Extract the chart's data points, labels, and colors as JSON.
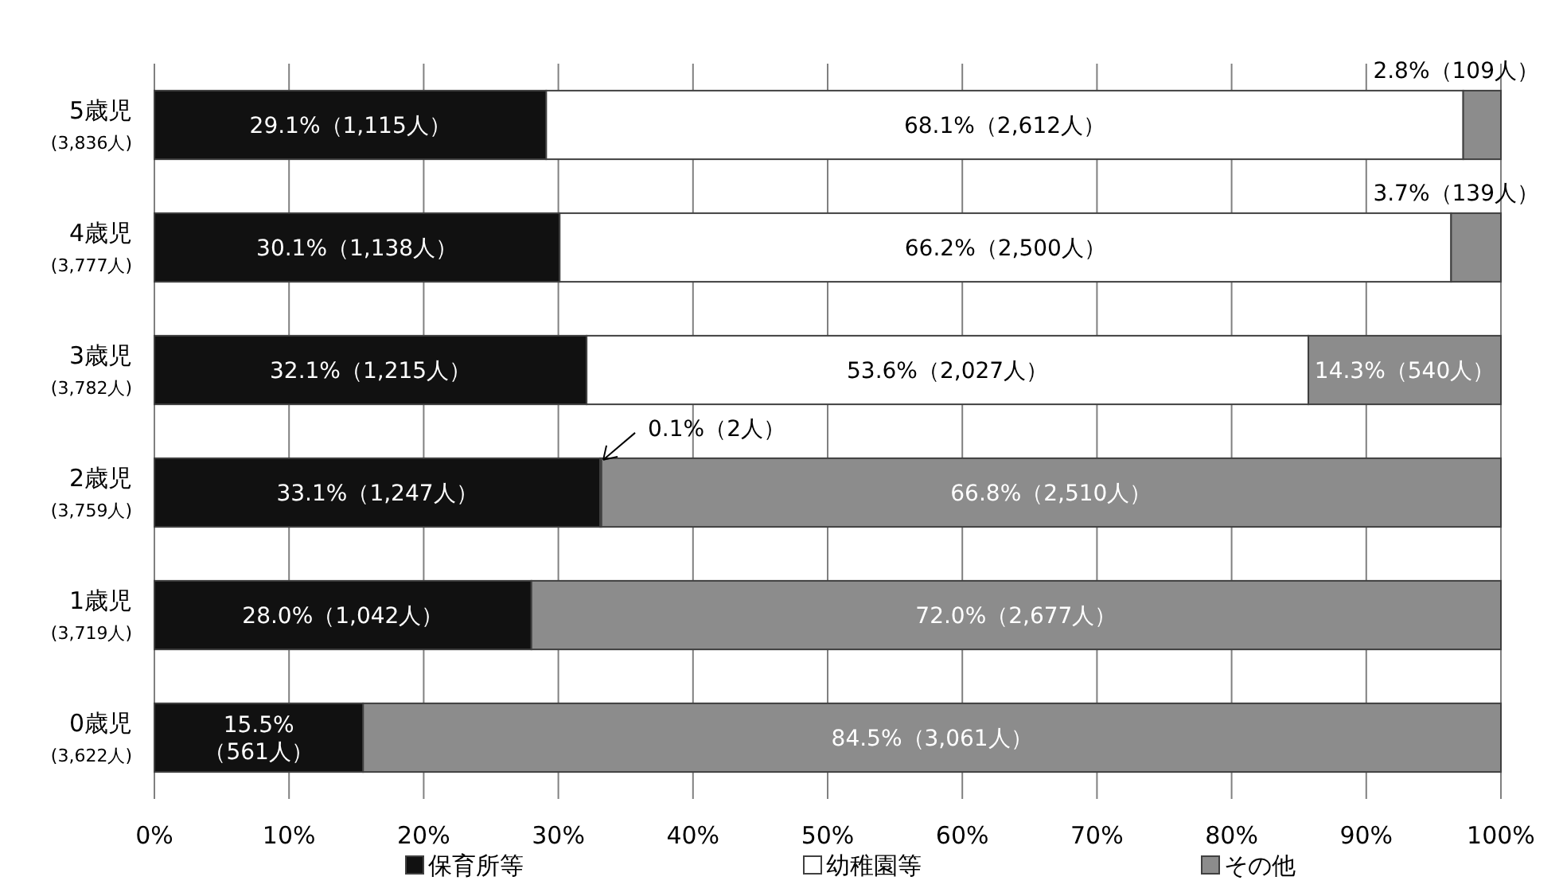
{
  "chart_data": {
    "type": "bar",
    "orientation": "horizontal",
    "stacked": true,
    "categories": [
      "5歳児\n(3,836人)",
      "4歳児\n(3,777人)",
      "3歳児\n(3,782人)",
      "2歳児\n(3,759人)",
      "1歳児\n(3,719人)",
      "0歳児\n(3,622人)"
    ],
    "series": [
      {
        "name": "保育所等",
        "color": "#111111",
        "values": [
          29.1,
          30.1,
          32.1,
          33.1,
          28.0,
          15.5
        ],
        "value_labels": [
          "29.1%（1,115人）",
          "30.1%（1,138人）",
          "32.1%（1,215人）",
          "33.1%（1,247人）",
          "28.0%（1,042人）",
          "15.5%\n（561人）"
        ]
      },
      {
        "name": "幼稚園等",
        "color": "#ffffff",
        "values": [
          68.1,
          66.2,
          53.6,
          0.1,
          0,
          0
        ],
        "value_labels": [
          "68.1%（2,612人）",
          "66.2%（2,500人）",
          "53.6%（2,027人）",
          "0.1%（2人）",
          null,
          null
        ]
      },
      {
        "name": "その他",
        "color": "#8c8c8c",
        "values": [
          2.8,
          3.7,
          14.3,
          66.8,
          72.0,
          84.5
        ],
        "value_labels": [
          "2.8%（109人）",
          "3.7%（139人）",
          "14.3%（540人）",
          "66.8%（2,510人）",
          "72.0%（2,677人）",
          "84.5%（3,061人）"
        ]
      }
    ],
    "xlim": [
      0,
      100
    ],
    "xticks": [
      {
        "value": 0,
        "label": "0%"
      },
      {
        "value": 10,
        "label": "10%"
      },
      {
        "value": 20,
        "label": "20%"
      },
      {
        "value": 30,
        "label": "30%"
      },
      {
        "value": 40,
        "label": "40%"
      },
      {
        "value": 50,
        "label": "50%"
      },
      {
        "value": 60,
        "label": "60%"
      },
      {
        "value": 70,
        "label": "70%"
      },
      {
        "value": 80,
        "label": "80%"
      },
      {
        "value": 90,
        "label": "90%"
      },
      {
        "value": 100,
        "label": "100%"
      }
    ],
    "grid": "x",
    "legend": "bottom"
  }
}
